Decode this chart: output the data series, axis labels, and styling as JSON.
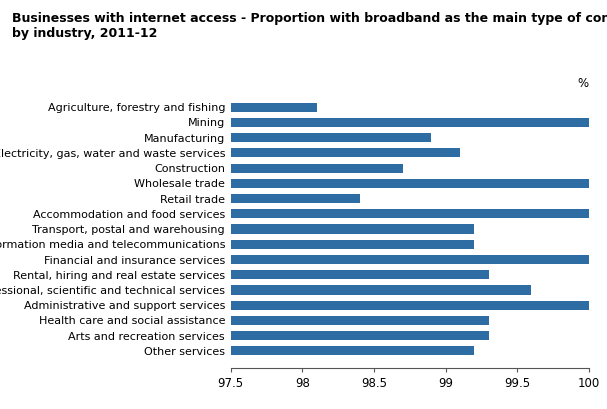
{
  "title_line1": "Businesses with internet access - Proportion with broadband as the main type of connection,",
  "title_line2": "by industry, 2011-12",
  "categories": [
    "Agriculture, forestry and fishing",
    "Mining",
    "Manufacturing",
    "Electricity, gas, water and waste services",
    "Construction",
    "Wholesale trade",
    "Retail trade",
    "Accommodation and food services",
    "Transport, postal and warehousing",
    "Information media and telecommunications",
    "Financial and insurance services",
    "Rental, hiring and real estate services",
    "Professional, scientific and technical services",
    "Administrative and support services",
    "Health care and social assistance",
    "Arts and recreation services",
    "Other services"
  ],
  "values": [
    98.1,
    100.0,
    98.9,
    99.1,
    98.7,
    100.0,
    98.4,
    100.0,
    99.2,
    99.2,
    100.0,
    99.3,
    99.6,
    100.0,
    99.3,
    99.3,
    99.2
  ],
  "bar_color": "#2e6da4",
  "xlim": [
    97.5,
    100.0
  ],
  "xticks": [
    97.5,
    98.0,
    98.5,
    99.0,
    99.5,
    100.0
  ],
  "xtick_labels": [
    "97.5",
    "98",
    "98.5",
    "99",
    "99.5",
    "100"
  ],
  "xlabel": "%",
  "background_color": "#ffffff",
  "title_fontsize": 9,
  "label_fontsize": 8,
  "tick_fontsize": 8.5
}
